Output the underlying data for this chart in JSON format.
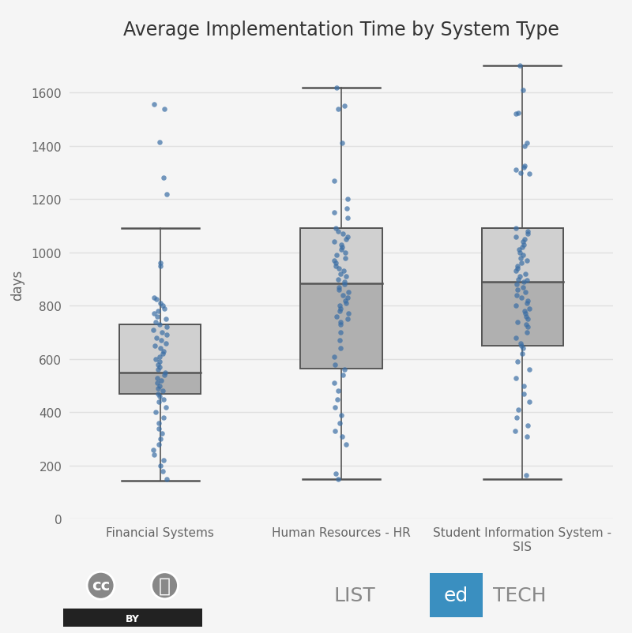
{
  "title": "Average Implementation Time by System Type",
  "ylabel": "days",
  "background_color": "#f5f5f5",
  "plot_bg_color": "#f5f5f5",
  "grid_color": "#e0e0e0",
  "box_color_light": "#d0d0d0",
  "box_color_dark": "#b0b0b0",
  "box_edge_color": "#555555",
  "whisker_color": "#555555",
  "dot_color": "#3a6ea5",
  "dot_alpha": 0.7,
  "dot_size": 22,
  "categories": [
    "Financial Systems",
    "Human Resources - HR",
    "Student Information System -\nSIS"
  ],
  "ylim": [
    0,
    1760
  ],
  "yticks": [
    0,
    200,
    400,
    600,
    800,
    1000,
    1200,
    1400,
    1600
  ],
  "boxes": [
    {
      "name": "Financial Systems",
      "x": 1,
      "whisker_low": 145,
      "q1": 470,
      "median": 550,
      "q3": 730,
      "whisker_high": 1090
    },
    {
      "name": "Human Resources - HR",
      "x": 2,
      "whisker_low": 148,
      "q1": 565,
      "median": 885,
      "q3": 1090,
      "whisker_high": 1620
    },
    {
      "name": "Student Information System",
      "x": 3,
      "whisker_low": 148,
      "q1": 650,
      "median": 890,
      "q3": 1090,
      "whisker_high": 1700
    }
  ],
  "scatter_data": {
    "Financial Systems": [
      1555,
      1540,
      1415,
      1280,
      1218,
      960,
      950,
      830,
      825,
      810,
      800,
      790,
      780,
      770,
      760,
      750,
      740,
      730,
      720,
      710,
      700,
      690,
      680,
      670,
      660,
      650,
      640,
      630,
      620,
      610,
      600,
      590,
      580,
      570,
      560,
      550,
      540,
      530,
      520,
      510,
      500,
      490,
      480,
      470,
      460,
      450,
      440,
      420,
      400,
      380,
      360,
      340,
      320,
      300,
      280,
      260,
      240,
      220,
      200,
      180,
      150
    ],
    "Human Resources - HR": [
      1620,
      1550,
      1540,
      1410,
      1270,
      1200,
      1165,
      1150,
      1130,
      1090,
      1080,
      1070,
      1060,
      1050,
      1040,
      1030,
      1020,
      1010,
      1000,
      990,
      980,
      970,
      960,
      950,
      940,
      930,
      920,
      910,
      900,
      890,
      880,
      870,
      860,
      850,
      840,
      830,
      820,
      810,
      800,
      790,
      780,
      770,
      760,
      750,
      740,
      730,
      700,
      670,
      640,
      610,
      580,
      560,
      540,
      510,
      480,
      450,
      420,
      390,
      360,
      330,
      310,
      280,
      170,
      150
    ],
    "Student Information System": [
      1700,
      1610,
      1525,
      1520,
      1410,
      1400,
      1325,
      1320,
      1310,
      1300,
      1295,
      1090,
      1080,
      1070,
      1060,
      1050,
      1040,
      1030,
      1020,
      1010,
      1000,
      990,
      980,
      970,
      960,
      950,
      940,
      930,
      920,
      910,
      900,
      895,
      890,
      880,
      870,
      860,
      850,
      840,
      830,
      820,
      810,
      800,
      790,
      780,
      770,
      760,
      750,
      740,
      730,
      720,
      700,
      680,
      660,
      650,
      640,
      620,
      590,
      560,
      530,
      500,
      470,
      440,
      410,
      380,
      350,
      330,
      310,
      165
    ]
  }
}
